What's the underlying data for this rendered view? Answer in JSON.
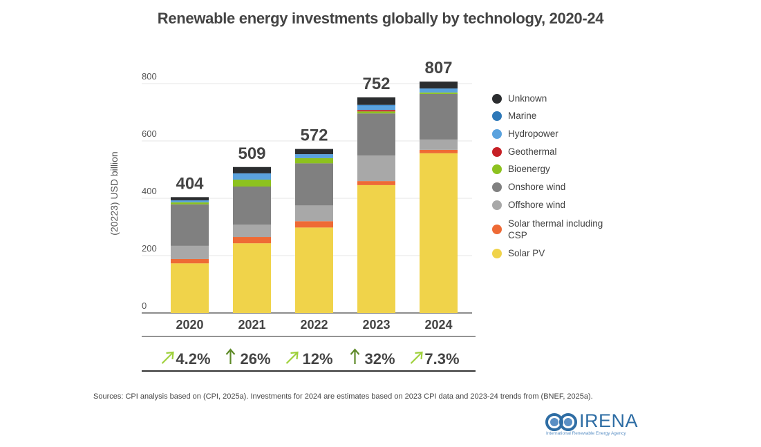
{
  "chart_data": {
    "type": "bar",
    "stacked": true,
    "title": "Renewable energy investments globally by technology, 2020-24",
    "xlabel": "",
    "ylabel": "(20223) USD billion",
    "ylim": [
      0,
      800
    ],
    "yticks": [
      0,
      200,
      400,
      600,
      800
    ],
    "grid": true,
    "legend_position": "right",
    "categories": [
      "2020",
      "2021",
      "2022",
      "2023",
      "2024"
    ],
    "totals": [
      404,
      509,
      572,
      752,
      807
    ],
    "growth": [
      {
        "label": "4.2%",
        "arrow": "diagonal",
        "color": "#9fd13c"
      },
      {
        "label": "26%",
        "arrow": "up",
        "color": "#5e8a28"
      },
      {
        "label": "12%",
        "arrow": "diagonal",
        "color": "#9fd13c"
      },
      {
        "label": "32%",
        "arrow": "up",
        "color": "#5e8a28"
      },
      {
        "label": "7.3%",
        "arrow": "diagonal",
        "color": "#9fd13c"
      }
    ],
    "series": [
      {
        "name": "Solar PV",
        "color": "#f0d34a",
        "values": [
          173,
          243,
          298,
          446,
          557
        ]
      },
      {
        "name": "Solar thermal including CSP",
        "color": "#ee6a35",
        "values": [
          15,
          22,
          22,
          14,
          12
        ]
      },
      {
        "name": "Offshore wind",
        "color": "#a8a8a8",
        "values": [
          46,
          43,
          55,
          89,
          36
        ]
      },
      {
        "name": "Onshore wind",
        "color": "#808080",
        "values": [
          145,
          133,
          147,
          147,
          159
        ]
      },
      {
        "name": "Bioenergy",
        "color": "#8dc21f",
        "values": [
          7,
          24,
          18,
          7,
          5
        ]
      },
      {
        "name": "Geothermal",
        "color": "#c62026",
        "values": [
          0,
          0,
          0,
          5,
          0
        ]
      },
      {
        "name": "Hydropower",
        "color": "#5aa2de",
        "values": [
          7,
          22,
          14,
          17,
          14
        ]
      },
      {
        "name": "Marine",
        "color": "#2e78b8",
        "values": [
          0,
          0,
          0,
          1,
          0
        ]
      },
      {
        "name": "Unknown",
        "color": "#2b2d2f",
        "values": [
          11,
          22,
          18,
          26,
          24
        ]
      }
    ],
    "legend_order": [
      "Unknown",
      "Marine",
      "Hydropower",
      "Geothermal",
      "Bioenergy",
      "Onshore wind",
      "Offshore wind",
      "Solar thermal including CSP",
      "Solar PV"
    ]
  },
  "source_note": "Sources: CPI analysis based on (CPI, 2025a). Investments for 2024 are estimates based on 2023 CPI data and 2023-24 trends from (BNEF, 2025a).",
  "logo": {
    "name": "IRENA",
    "subtitle": "International Renewable Energy Agency"
  }
}
